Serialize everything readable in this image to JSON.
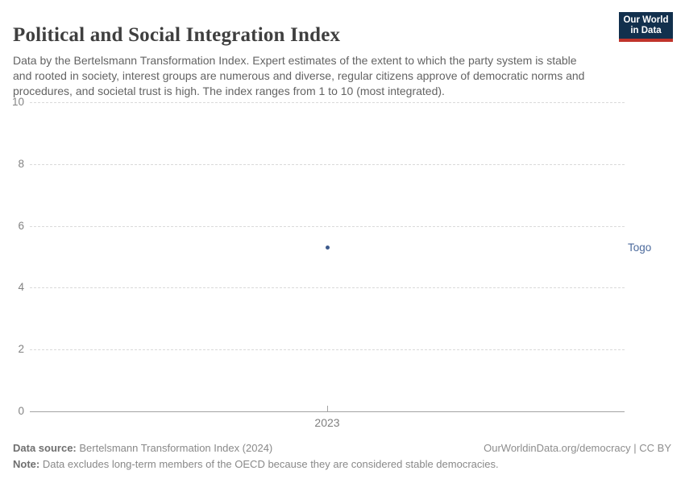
{
  "header": {
    "title": "Political and Social Integration Index",
    "subtitle": "Data by the Bertelsmann Transformation Index. Expert estimates of the extent to which the party system is stable and rooted in society, interest groups are numerous and diverse, regular citizens approve of democratic norms and procedures, and societal trust is high. The index ranges from 1 to 10 (most integrated).",
    "logo": {
      "line1": "Our World",
      "line2": "in Data",
      "bg_color": "#12304d",
      "accent_color": "#c0342b"
    }
  },
  "chart_data": {
    "type": "scatter",
    "title": "Political and Social Integration Index",
    "x": [
      2023
    ],
    "xtick_labels": [
      "2023"
    ],
    "series": [
      {
        "name": "Togo",
        "values": [
          5.3
        ],
        "point_color": "#3d5a8c",
        "label_color": "#4c6a9c"
      }
    ],
    "ylim": [
      0,
      10
    ],
    "yticks": [
      0,
      2,
      4,
      6,
      8,
      10
    ],
    "xlabel": "",
    "ylabel": "",
    "grid": "horizontal-dashed",
    "legend_position": "right-of-point"
  },
  "footer": {
    "data_source_label": "Data source:",
    "data_source_text": " Bertelsmann Transformation Index (2024)",
    "rights_text": "OurWorldinData.org/democracy | CC BY",
    "note_label": "Note:",
    "note_text": " Data excludes long-term members of the OECD because they are considered stable democracies."
  }
}
